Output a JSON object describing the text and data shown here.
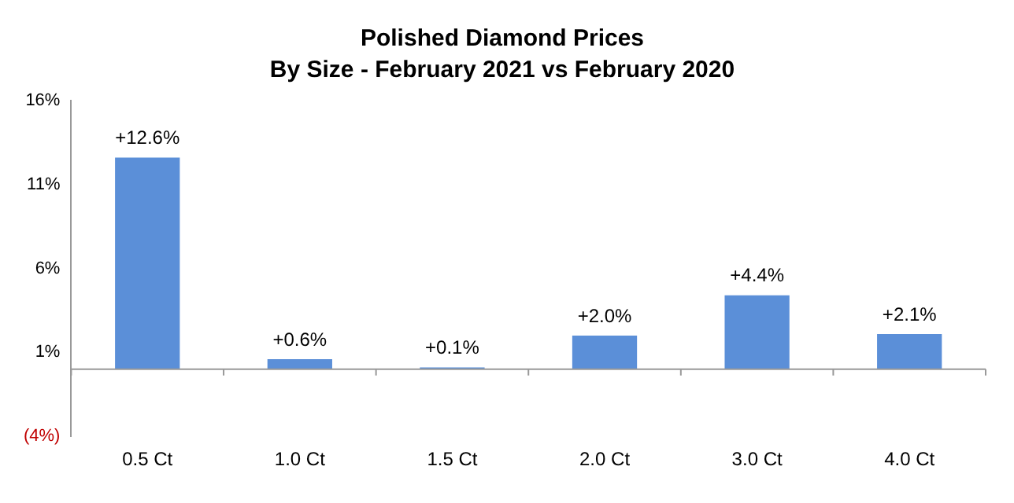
{
  "chart_data": {
    "type": "bar",
    "title": "Polished Diamond Prices",
    "subtitle": "By Size - February 2021 vs February 2020",
    "categories": [
      "0.5 Ct",
      "1.0 Ct",
      "1.5 Ct",
      "2.0 Ct",
      "3.0 Ct",
      "4.0 Ct"
    ],
    "values": [
      12.6,
      0.6,
      0.1,
      2.0,
      4.4,
      2.1
    ],
    "color": "#5b8fd8",
    "value_labels": [
      "+12.6%",
      "+0.6%",
      "+0.1%",
      "+2.0%",
      "+4.4%",
      "+2.1%"
    ],
    "ylim": [
      -4,
      16
    ],
    "yticks": [
      {
        "value": -4,
        "label": "(4%)"
      },
      {
        "value": 1,
        "label": "1%"
      },
      {
        "value": 6,
        "label": "6%"
      },
      {
        "value": 11,
        "label": "11%"
      },
      {
        "value": 16,
        "label": "16%"
      }
    ],
    "grid": false,
    "legend": false
  }
}
